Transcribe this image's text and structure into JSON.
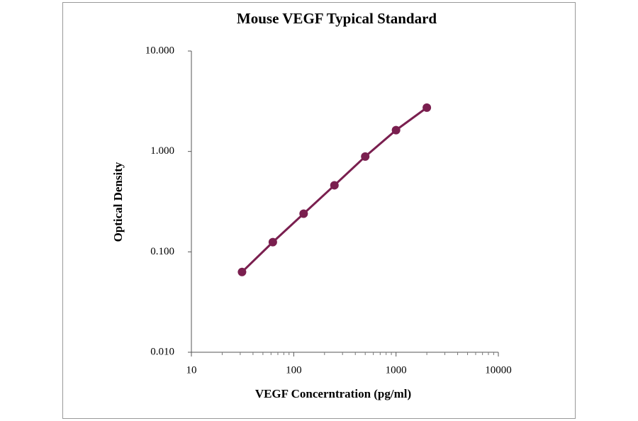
{
  "chart_data": {
    "type": "scatter",
    "title": "Mouse VEGF Typical Standard",
    "x_label": "VEGF Concerntration (pg/ml)",
    "y_label": "Optical Density",
    "x_log": true,
    "y_log": true,
    "x_minor_ticks": true,
    "grid": false,
    "connect_points": true,
    "series": [
      {
        "color": "#7a1f4f",
        "x": [
          31.25,
          62.5,
          125,
          250,
          500,
          1000,
          2000
        ],
        "values": [
          0.063,
          0.125,
          0.24,
          0.46,
          0.89,
          1.63,
          2.73
        ]
      }
    ],
    "xlim": [
      10,
      10000
    ],
    "xticks": [
      10,
      100,
      1000,
      10000
    ],
    "ylim": [
      0.01,
      10
    ],
    "yticks": [
      {
        "value": 0.01,
        "label": "0.010"
      },
      {
        "value": 0.1,
        "label": "0.100"
      },
      {
        "value": 1,
        "label": "1.000"
      },
      {
        "value": 10,
        "label": "10.000"
      }
    ]
  }
}
